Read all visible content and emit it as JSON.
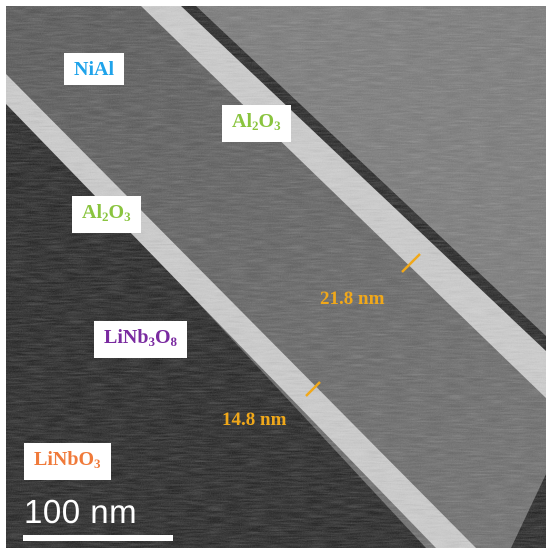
{
  "image": {
    "scale_bar": "100 nm",
    "layers": [
      {
        "name": "NiAl",
        "parts": [
          {
            "t": "NiAl"
          }
        ],
        "color": "#1fa3ea"
      },
      {
        "name": "Al2O3 (upper)",
        "parts": [
          {
            "t": "Al"
          },
          {
            "t": "2",
            "sub": true
          },
          {
            "t": "O"
          },
          {
            "t": "3",
            "sub": true
          }
        ],
        "color": "#8ac43f"
      },
      {
        "name": "Al2O3 (lower)",
        "parts": [
          {
            "t": "Al"
          },
          {
            "t": "2",
            "sub": true
          },
          {
            "t": "O"
          },
          {
            "t": "3",
            "sub": true
          }
        ],
        "color": "#8ac43f"
      },
      {
        "name": "LiNb3O8",
        "parts": [
          {
            "t": "LiNb"
          },
          {
            "t": "3",
            "sub": true
          },
          {
            "t": "O"
          },
          {
            "t": "8",
            "sub": true
          }
        ],
        "color": "#7a2aa0"
      },
      {
        "name": "LiNbO3",
        "parts": [
          {
            "t": "LiNbO"
          },
          {
            "t": "3",
            "sub": true
          }
        ],
        "color": "#f07a3a"
      }
    ],
    "measurements": [
      {
        "label": "21.8 nm",
        "color": "#f0a81a"
      },
      {
        "label": "14.8 nm",
        "color": "#f0a81a"
      }
    ],
    "colors": {
      "annotation_yellow": "#f0a81a",
      "background_dark": "#141414",
      "alumina_bright": "#d6d6d6",
      "niAl_band": "#5e5e5e",
      "upper_region": "#6f6f6f"
    }
  }
}
